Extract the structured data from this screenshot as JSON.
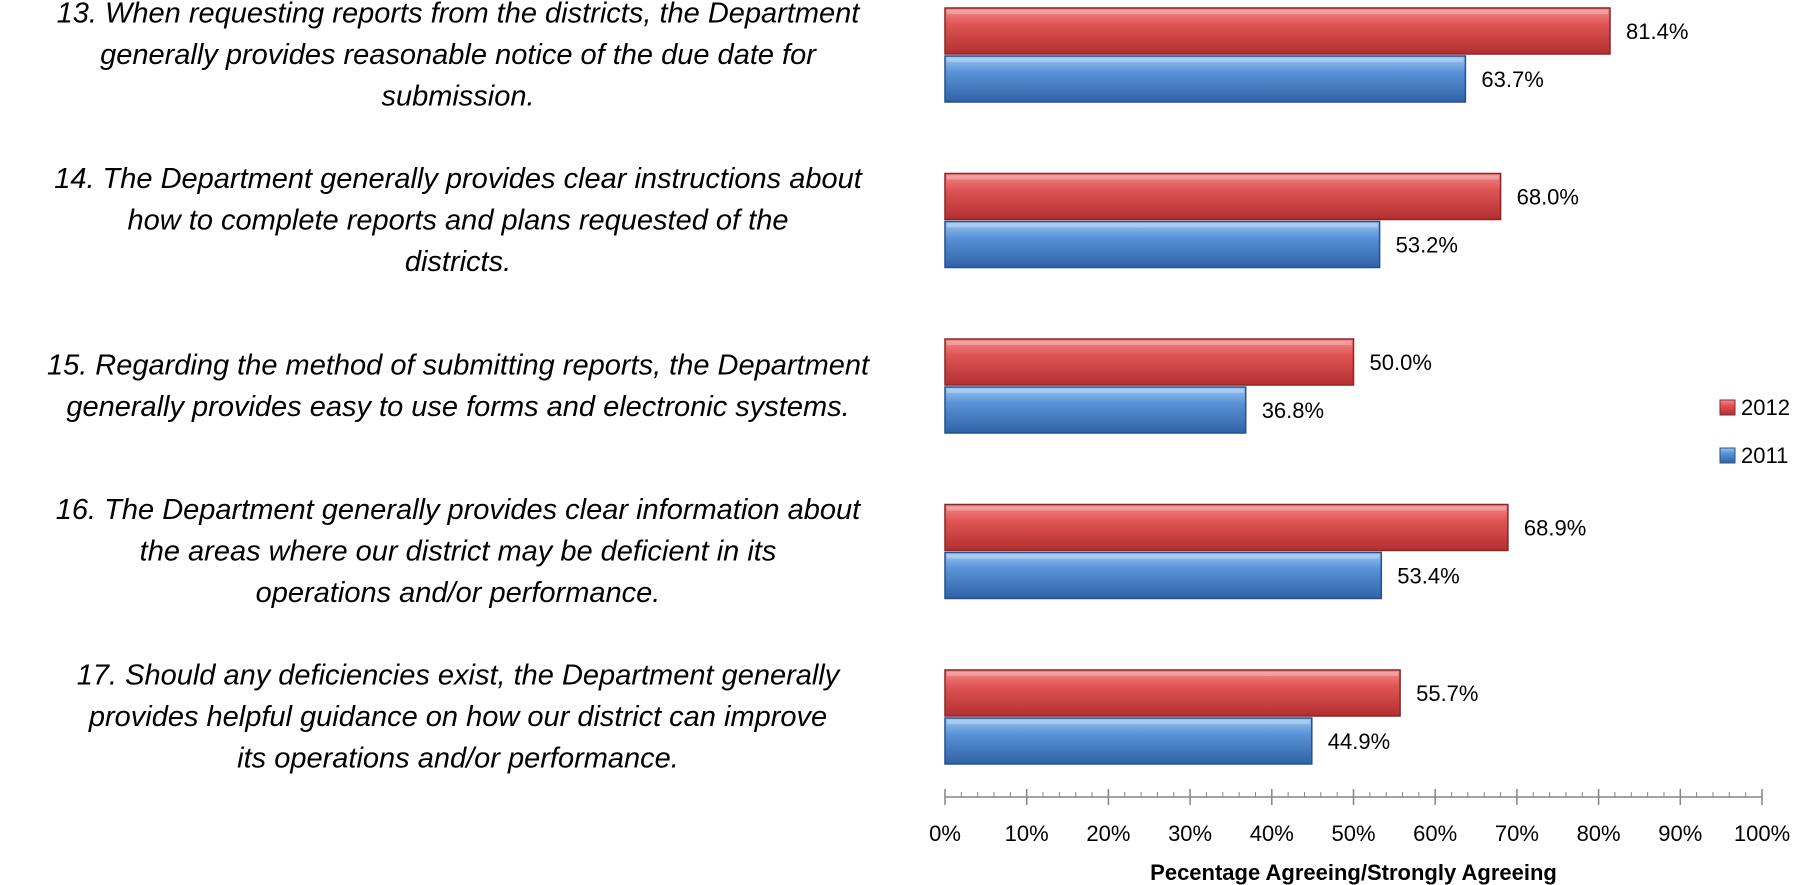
{
  "chart_data": {
    "type": "bar",
    "orientation": "horizontal",
    "categories": [
      "13. When requesting reports from the districts, the Department generally provides reasonable notice of the due date for submission.",
      "14. The Department generally provides clear instructions about how to complete reports and plans requested of the districts.",
      "15. Regarding the method of submitting reports, the Department generally provides easy to use forms and electronic systems.",
      "16. The Department generally provides clear information about the areas where our district may be deficient in its operations and/or performance.",
      "17. Should any deficiencies exist, the Department generally provides helpful guidance on how our district can improve its operations and/or performance."
    ],
    "category_lines": [
      [
        "13. When requesting reports from the districts, the Department",
        "generally provides reasonable notice of the due date for",
        "submission."
      ],
      [
        "14. The Department generally provides clear instructions about",
        "how to complete reports and plans requested of the",
        "districts."
      ],
      [
        "15. Regarding the method of submitting reports, the Department",
        "generally provides easy to use forms and electronic systems."
      ],
      [
        "16. The Department generally provides clear information about",
        "the areas where our district may be deficient in its",
        "operations and/or performance."
      ],
      [
        "17. Should any deficiencies exist, the Department generally",
        "provides helpful guidance on how our district can improve",
        "its operations and/or performance."
      ]
    ],
    "series": [
      {
        "name": "2012",
        "color": "#c0393b",
        "color_light": "#ec7a7a",
        "values": [
          81.4,
          68.0,
          50.0,
          68.9,
          55.7
        ],
        "labels": [
          "81.4%",
          "68.0%",
          "50.0%",
          "68.9%",
          "55.7%"
        ]
      },
      {
        "name": "2011",
        "color": "#3f73b8",
        "color_light": "#8fbcef",
        "values": [
          63.7,
          53.2,
          36.8,
          53.4,
          44.9
        ],
        "labels": [
          "63.7%",
          "53.2%",
          "36.8%",
          "53.4%",
          "44.9%"
        ]
      }
    ],
    "xlim": [
      0,
      100
    ],
    "x_ticks": [
      "0%",
      "10%",
      "20%",
      "30%",
      "40%",
      "50%",
      "60%",
      "70%",
      "80%",
      "90%",
      "100%"
    ],
    "xlabel": "Pecentage Agreeing/Strongly Agreeing",
    "legend_position": "right",
    "grid": false
  }
}
